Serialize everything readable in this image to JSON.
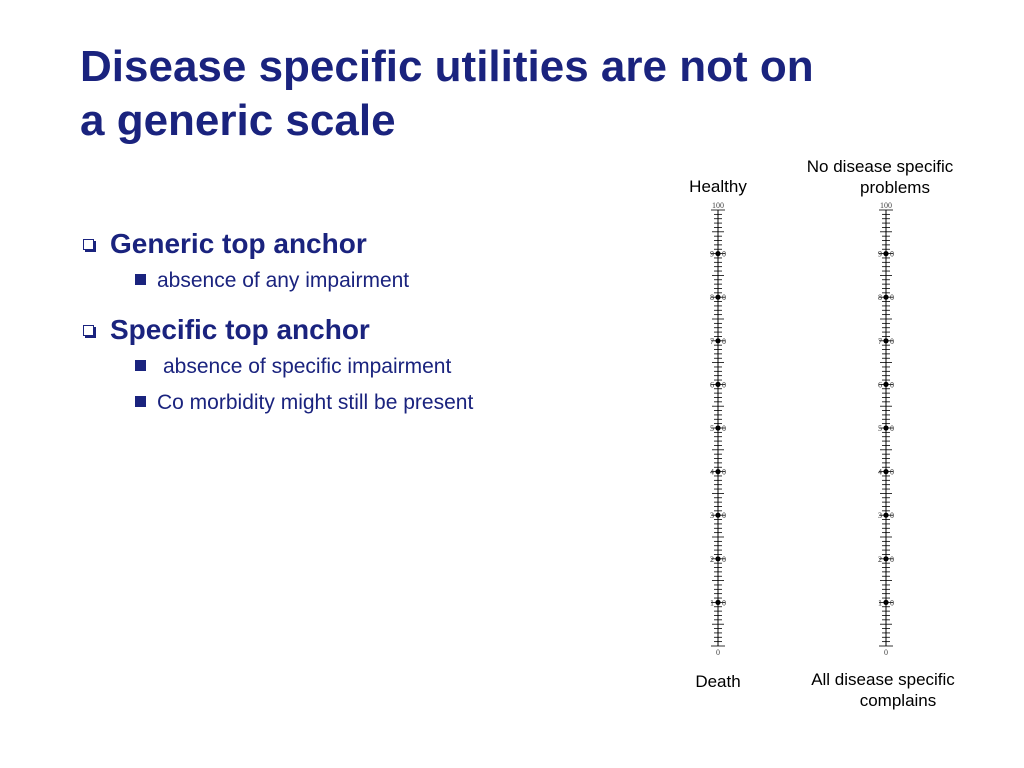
{
  "slide": {
    "title_line1": "Disease specific utilities are not on",
    "title_line2": "a generic scale",
    "bullets": [
      {
        "label": "Generic top anchor",
        "sub": [
          "absence of any impairment"
        ]
      },
      {
        "label": "Specific top anchor",
        "sub": [
          "absence of specific impairment",
          "Co morbidity might still be present"
        ]
      }
    ]
  },
  "scales": {
    "left": {
      "top_label": "Healthy",
      "bottom_label": "Death"
    },
    "right": {
      "top_label_line1": "No disease specific",
      "top_label_line2": "problems",
      "bottom_label_line1": "All disease specific",
      "bottom_label_line2": "complains"
    },
    "tick_labels": [
      "100",
      "90",
      "80",
      "70",
      "60",
      "50",
      "40",
      "30",
      "20",
      "10",
      "0"
    ],
    "marker_values": [
      90,
      80,
      70,
      60,
      50,
      40,
      30,
      20,
      10
    ]
  }
}
